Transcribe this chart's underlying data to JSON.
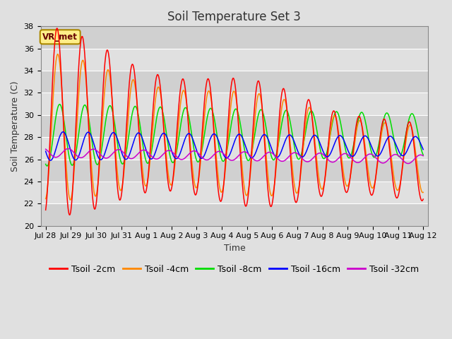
{
  "title": "Soil Temperature Set 3",
  "xlabel": "Time",
  "ylabel": "Soil Temperature (C)",
  "ylim": [
    20,
    38
  ],
  "yticks": [
    20,
    22,
    24,
    26,
    28,
    30,
    32,
    34,
    36,
    38
  ],
  "colors": {
    "2cm": "#ff0000",
    "4cm": "#ff8800",
    "8cm": "#00dd00",
    "16cm": "#0000ff",
    "32cm": "#cc00cc"
  },
  "legend_labels": [
    "Tsoil -2cm",
    "Tsoil -4cm",
    "Tsoil -8cm",
    "Tsoil -16cm",
    "Tsoil -32cm"
  ],
  "annotation_text": "VR_met",
  "plot_bg_color": "#d8d8d8",
  "grid_color": "#ffffff",
  "alt_band_color": "#cccccc",
  "title_fontsize": 12,
  "axis_fontsize": 9,
  "tick_fontsize": 8,
  "legend_fontsize": 9
}
